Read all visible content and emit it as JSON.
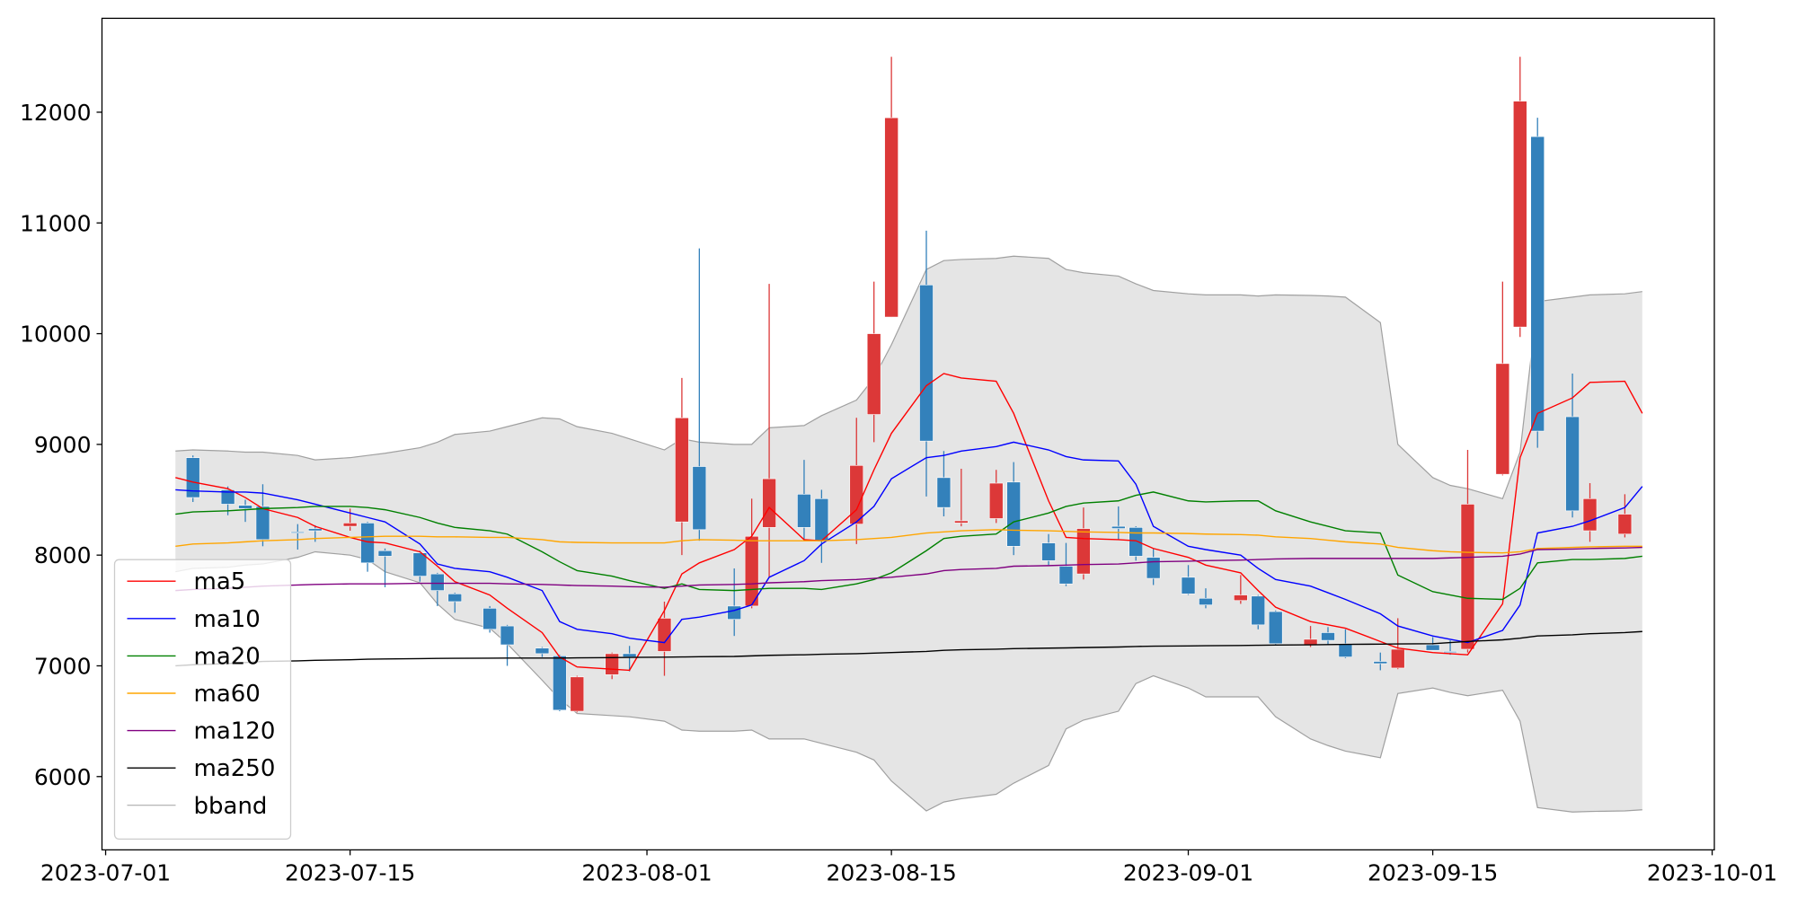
{
  "chart_data": {
    "type": "candlestick",
    "x": [
      "2023-07-05",
      "2023-07-06",
      "2023-07-08",
      "2023-07-09",
      "2023-07-10",
      "2023-07-12",
      "2023-07-13",
      "2023-07-15",
      "2023-07-16",
      "2023-07-17",
      "2023-07-19",
      "2023-07-20",
      "2023-07-21",
      "2023-07-23",
      "2023-07-24",
      "2023-07-26",
      "2023-07-27",
      "2023-07-28",
      "2023-07-30",
      "2023-07-31",
      "2023-08-02",
      "2023-08-03",
      "2023-08-04",
      "2023-08-06",
      "2023-08-07",
      "2023-08-08",
      "2023-08-10",
      "2023-08-11",
      "2023-08-13",
      "2023-08-14",
      "2023-08-15",
      "2023-08-17",
      "2023-08-18",
      "2023-08-19",
      "2023-08-21",
      "2023-08-22",
      "2023-08-24",
      "2023-08-25",
      "2023-08-26",
      "2023-08-28",
      "2023-08-29",
      "2023-08-30",
      "2023-09-01",
      "2023-09-02",
      "2023-09-04",
      "2023-09-05",
      "2023-09-06",
      "2023-09-08",
      "2023-09-09",
      "2023-09-10",
      "2023-09-12",
      "2023-09-13",
      "2023-09-15",
      "2023-09-16",
      "2023-09-17",
      "2023-09-19",
      "2023-09-20",
      "2023-09-21",
      "2023-09-23",
      "2023-09-24",
      "2023-09-26",
      "2023-09-27"
    ],
    "candles": {
      "up_color": "#dc3838",
      "down_color": "#3381bb",
      "open": [
        null,
        8880,
        8590,
        8450,
        8440,
        8210,
        8240,
        8260,
        8290,
        8040,
        8020,
        7830,
        7650,
        7520,
        7360,
        7160,
        7090,
        6590,
        6920,
        7110,
        7130,
        8300,
        8800,
        7540,
        7540,
        8250,
        8550,
        8510,
        8280,
        9270,
        10150,
        10440,
        8700,
        8290,
        8330,
        8660,
        8110,
        7900,
        7830,
        8260,
        8250,
        7980,
        7800,
        7610,
        7590,
        7630,
        7490,
        7190,
        7300,
        7200,
        7040,
        6980,
        7190,
        7130,
        7150,
        8730,
        10060,
        11780,
        9250,
        8220,
        8190,
        null
      ],
      "high": [
        null,
        8900,
        8620,
        8500,
        8640,
        8280,
        8270,
        8420,
        8300,
        8060,
        8040,
        7840,
        7660,
        7540,
        7370,
        7170,
        7100,
        6910,
        7120,
        7180,
        7580,
        9600,
        10770,
        7880,
        8510,
        10450,
        8860,
        8590,
        9240,
        10470,
        12500,
        10930,
        8940,
        8780,
        8770,
        8840,
        8190,
        8110,
        8430,
        8440,
        8260,
        8060,
        7910,
        7700,
        7820,
        7640,
        7500,
        7360,
        7350,
        7330,
        7120,
        7430,
        7260,
        7230,
        8950,
        10470,
        12500,
        11950,
        9640,
        8650,
        8550,
        null
      ],
      "low": [
        null,
        8480,
        8360,
        8300,
        8080,
        8050,
        8120,
        8220,
        7850,
        7710,
        7760,
        7540,
        7480,
        7300,
        7000,
        7080,
        6590,
        6580,
        6880,
        6950,
        6910,
        8000,
        8130,
        7270,
        7520,
        7800,
        8130,
        7930,
        8100,
        9020,
        10150,
        8530,
        8350,
        8260,
        8290,
        8000,
        7910,
        7720,
        7780,
        8140,
        7950,
        7730,
        7640,
        7520,
        7560,
        7330,
        7190,
        7170,
        7190,
        7070,
        6960,
        6970,
        7140,
        7100,
        7120,
        8720,
        9970,
        8970,
        8340,
        8120,
        8160,
        null
      ],
      "close": [
        null,
        8520,
        8460,
        8420,
        8140,
        8200,
        8220,
        8290,
        7930,
        7990,
        7810,
        7680,
        7580,
        7330,
        7190,
        7110,
        6600,
        6900,
        7110,
        7080,
        7430,
        9240,
        8230,
        7420,
        8170,
        8690,
        8250,
        8130,
        8810,
        10000,
        11950,
        9030,
        8430,
        8310,
        8650,
        8080,
        7950,
        7740,
        8240,
        8240,
        7990,
        7790,
        7650,
        7550,
        7640,
        7370,
        7200,
        7240,
        7230,
        7080,
        7020,
        7150,
        7140,
        7120,
        8460,
        9730,
        12100,
        9120,
        8400,
        8510,
        8370,
        null
      ]
    },
    "series": [
      {
        "name": "ma5",
        "color": "#ff0000",
        "values": [
          8700,
          8660,
          8600,
          8520,
          8420,
          8340,
          8260,
          8160,
          8120,
          8110,
          8030,
          7900,
          7760,
          7640,
          7520,
          7300,
          7080,
          6990,
          6970,
          6960,
          7500,
          7830,
          7930,
          8050,
          8170,
          8430,
          8140,
          8130,
          8410,
          8770,
          9100,
          9530,
          9640,
          9600,
          9570,
          9280,
          8490,
          8160,
          8150,
          8140,
          8130,
          8060,
          7980,
          7910,
          7840,
          7680,
          7530,
          7400,
          7370,
          7340,
          7220,
          7160,
          7120,
          7110,
          7100,
          7560,
          8880,
          9280,
          9420,
          9560,
          9570,
          9280
        ]
      },
      {
        "name": "ma10",
        "color": "#0000ff",
        "values": [
          8590,
          8580,
          8570,
          8570,
          8560,
          8500,
          8460,
          8380,
          8340,
          8300,
          8100,
          7920,
          7880,
          7850,
          7800,
          7680,
          7400,
          7330,
          7290,
          7250,
          7210,
          7420,
          7440,
          7500,
          7550,
          7800,
          7950,
          8100,
          8300,
          8440,
          8690,
          8880,
          8900,
          8940,
          8980,
          9020,
          8950,
          8890,
          8860,
          8850,
          8640,
          8260,
          8080,
          8050,
          8000,
          7880,
          7780,
          7720,
          7660,
          7600,
          7470,
          7360,
          7270,
          7240,
          7210,
          7320,
          7550,
          8200,
          8260,
          8310,
          8430,
          8620
        ]
      },
      {
        "name": "ma20",
        "color": "#008000",
        "values": [
          8370,
          8390,
          8400,
          8410,
          8420,
          8430,
          8440,
          8440,
          8430,
          8410,
          8340,
          8290,
          8250,
          8220,
          8190,
          8030,
          7940,
          7860,
          7810,
          7770,
          7700,
          7740,
          7690,
          7680,
          7690,
          7700,
          7700,
          7690,
          7740,
          7780,
          7840,
          8040,
          8150,
          8170,
          8190,
          8300,
          8380,
          8440,
          8470,
          8490,
          8540,
          8570,
          8490,
          8480,
          8490,
          8490,
          8400,
          8300,
          8260,
          8220,
          8200,
          7820,
          7670,
          7640,
          7610,
          7600,
          7700,
          7930,
          7960,
          7960,
          7970,
          7990
        ]
      },
      {
        "name": "ma60",
        "color": "#ffa500",
        "values": [
          8080,
          8100,
          8110,
          8120,
          8130,
          8140,
          8150,
          8160,
          8165,
          8170,
          8170,
          8165,
          8165,
          8160,
          8160,
          8140,
          8120,
          8115,
          8110,
          8110,
          8110,
          8130,
          8140,
          8135,
          8130,
          8130,
          8130,
          8130,
          8140,
          8150,
          8160,
          8200,
          8210,
          8220,
          8230,
          8225,
          8220,
          8215,
          8210,
          8205,
          8200,
          8200,
          8195,
          8190,
          8185,
          8180,
          8165,
          8150,
          8135,
          8120,
          8100,
          8070,
          8040,
          8030,
          8025,
          8020,
          8030,
          8060,
          8070,
          8075,
          8080,
          8080
        ]
      },
      {
        "name": "ma120",
        "color": "#800080",
        "values": [
          7680,
          7690,
          7700,
          7710,
          7720,
          7730,
          7735,
          7740,
          7740,
          7740,
          7745,
          7745,
          7745,
          7745,
          7740,
          7735,
          7730,
          7725,
          7720,
          7715,
          7710,
          7720,
          7730,
          7735,
          7740,
          7750,
          7760,
          7770,
          7780,
          7790,
          7800,
          7830,
          7860,
          7870,
          7880,
          7900,
          7905,
          7910,
          7915,
          7920,
          7930,
          7940,
          7945,
          7950,
          7955,
          7960,
          7965,
          7970,
          7970,
          7970,
          7970,
          7970,
          7970,
          7975,
          7980,
          7990,
          8010,
          8050,
          8055,
          8060,
          8065,
          8070
        ]
      },
      {
        "name": "ma250",
        "color": "#000000",
        "values": [
          7000,
          7010,
          7020,
          7030,
          7040,
          7045,
          7050,
          7055,
          7060,
          7062,
          7065,
          7067,
          7068,
          7069,
          7070,
          7070,
          7070,
          7072,
          7074,
          7076,
          7078,
          7080,
          7082,
          7085,
          7090,
          7095,
          7100,
          7105,
          7110,
          7115,
          7120,
          7130,
          7140,
          7145,
          7150,
          7155,
          7160,
          7162,
          7165,
          7170,
          7175,
          7178,
          7180,
          7182,
          7184,
          7186,
          7188,
          7190,
          7192,
          7194,
          7196,
          7198,
          7200,
          7210,
          7220,
          7235,
          7250,
          7270,
          7280,
          7290,
          7300,
          7310
        ]
      },
      {
        "name": "bband",
        "color": "#a0a0a0",
        "fill": "#e5e5e5",
        "upper": [
          8940,
          8950,
          8940,
          8930,
          8930,
          8900,
          8860,
          8880,
          8900,
          8920,
          8970,
          9020,
          9090,
          9120,
          9160,
          9240,
          9230,
          9160,
          9100,
          9050,
          8950,
          9050,
          9020,
          9000,
          9000,
          9150,
          9170,
          9260,
          9400,
          9600,
          9900,
          10580,
          10660,
          10670,
          10680,
          10700,
          10680,
          10580,
          10550,
          10520,
          10450,
          10390,
          10360,
          10350,
          10350,
          10340,
          10350,
          10345,
          10340,
          10330,
          10100,
          9000,
          8700,
          8630,
          8600,
          8510,
          8930,
          10290,
          10330,
          10350,
          10360,
          10380
        ],
        "lower": [
          7850,
          7880,
          7890,
          7910,
          7920,
          7980,
          8030,
          8000,
          7960,
          7850,
          7750,
          7560,
          7420,
          7340,
          7200,
          6870,
          6700,
          6570,
          6550,
          6540,
          6500,
          6420,
          6410,
          6410,
          6420,
          6340,
          6340,
          6300,
          6220,
          6150,
          5960,
          5690,
          5770,
          5800,
          5840,
          5940,
          6100,
          6430,
          6510,
          6590,
          6840,
          6910,
          6800,
          6720,
          6720,
          6720,
          6540,
          6340,
          6280,
          6230,
          6170,
          6750,
          6800,
          6760,
          6730,
          6780,
          6500,
          5720,
          5680,
          5685,
          5690,
          5700
        ]
      }
    ],
    "xlim": [
      "2023-06-30T19:00",
      "2023-10-01T03:00"
    ],
    "xticks": [
      "2023-07-01",
      "2023-07-15",
      "2023-08-01",
      "2023-08-15",
      "2023-09-01",
      "2023-09-15",
      "2023-10-01"
    ],
    "ylim": [
      5338,
      12848
    ],
    "yticks": [
      6000,
      7000,
      8000,
      9000,
      10000,
      11000,
      12000
    ],
    "legend": "lower left"
  }
}
